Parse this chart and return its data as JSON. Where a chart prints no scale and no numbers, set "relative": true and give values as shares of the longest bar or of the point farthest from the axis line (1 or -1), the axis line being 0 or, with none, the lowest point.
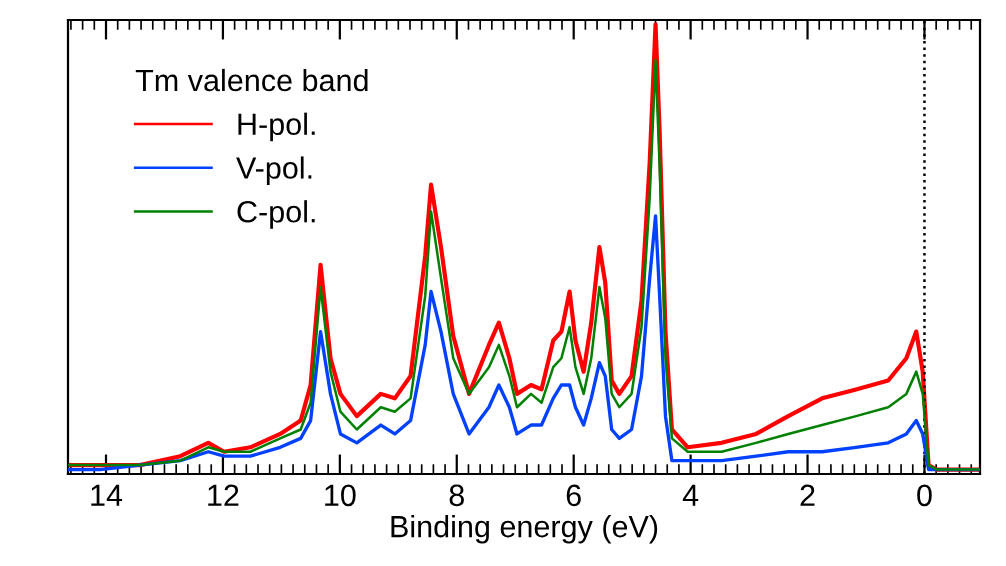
{
  "chart_data": {
    "type": "line",
    "xlabel": "Binding energy (eV)",
    "legend_title": "Tm valence band",
    "relative": true,
    "x": [
      14.65,
      14.1,
      13.42,
      12.73,
      12.25,
      11.98,
      11.53,
      11.02,
      10.67,
      10.5,
      10.33,
      10.16,
      9.99,
      9.71,
      9.3,
      9.06,
      8.79,
      8.54,
      8.44,
      8.27,
      8.06,
      7.79,
      7.45,
      7.28,
      7.1,
      6.97,
      6.73,
      6.55,
      6.35,
      6.21,
      6.07,
      5.97,
      5.83,
      5.7,
      5.56,
      5.46,
      5.35,
      5.22,
      5.01,
      4.84,
      4.7,
      4.6,
      4.53,
      4.43,
      4.32,
      4.05,
      3.47,
      2.88,
      2.33,
      1.75,
      1.17,
      0.62,
      0.31,
      0.14,
      0.03,
      -0.07,
      -0.21,
      -0.95
    ],
    "series": [
      {
        "name": "H-pol.",
        "color": "#ff0000",
        "values": [
          0.01,
          0.01,
          0.01,
          0.03,
          0.06,
          0.04,
          0.05,
          0.08,
          0.11,
          0.19,
          0.46,
          0.25,
          0.17,
          0.12,
          0.17,
          0.16,
          0.21,
          0.48,
          0.64,
          0.5,
          0.3,
          0.17,
          0.28,
          0.33,
          0.25,
          0.17,
          0.19,
          0.18,
          0.29,
          0.31,
          0.4,
          0.29,
          0.22,
          0.33,
          0.5,
          0.42,
          0.2,
          0.17,
          0.21,
          0.38,
          0.69,
          1.0,
          0.76,
          0.31,
          0.09,
          0.05,
          0.06,
          0.08,
          0.12,
          0.16,
          0.18,
          0.2,
          0.25,
          0.31,
          0.22,
          0.01,
          0,
          0
        ]
      },
      {
        "name": "V-pol.",
        "color": "#0040ff",
        "values": [
          0.0,
          0.0,
          0.01,
          0.02,
          0.04,
          0.03,
          0.03,
          0.05,
          0.07,
          0.11,
          0.31,
          0.17,
          0.08,
          0.06,
          0.1,
          0.08,
          0.11,
          0.28,
          0.4,
          0.31,
          0.17,
          0.08,
          0.14,
          0.19,
          0.14,
          0.08,
          0.1,
          0.1,
          0.16,
          0.19,
          0.19,
          0.14,
          0.1,
          0.16,
          0.24,
          0.21,
          0.09,
          0.07,
          0.09,
          0.21,
          0.43,
          0.57,
          0.39,
          0.12,
          0.02,
          0.02,
          0.02,
          0.03,
          0.04,
          0.04,
          0.05,
          0.06,
          0.08,
          0.11,
          0.08,
          0.0,
          0,
          0
        ]
      },
      {
        "name": "C-pol.",
        "color": "#008000",
        "values": [
          0.01,
          0.01,
          0.01,
          0.02,
          0.05,
          0.04,
          0.04,
          0.07,
          0.09,
          0.15,
          0.41,
          0.22,
          0.13,
          0.09,
          0.14,
          0.13,
          0.16,
          0.39,
          0.58,
          0.43,
          0.25,
          0.17,
          0.23,
          0.28,
          0.21,
          0.14,
          0.17,
          0.15,
          0.23,
          0.25,
          0.32,
          0.23,
          0.17,
          0.25,
          0.41,
          0.34,
          0.17,
          0.14,
          0.17,
          0.32,
          0.61,
          0.92,
          0.68,
          0.25,
          0.07,
          0.04,
          0.04,
          0.06,
          0.08,
          0.1,
          0.12,
          0.14,
          0.17,
          0.22,
          0.17,
          0.01,
          0,
          0
        ]
      }
    ],
    "xlim": [
      14.65,
      -0.95
    ],
    "xticks": [
      14,
      12,
      10,
      8,
      6,
      4,
      2,
      0
    ],
    "ref_lines": [
      {
        "axis": "x",
        "value": 0,
        "color": "#000000",
        "line_style": "dotted"
      }
    ],
    "legend": "top left",
    "grid": false,
    "marker": "none",
    "line_style": "solid"
  }
}
